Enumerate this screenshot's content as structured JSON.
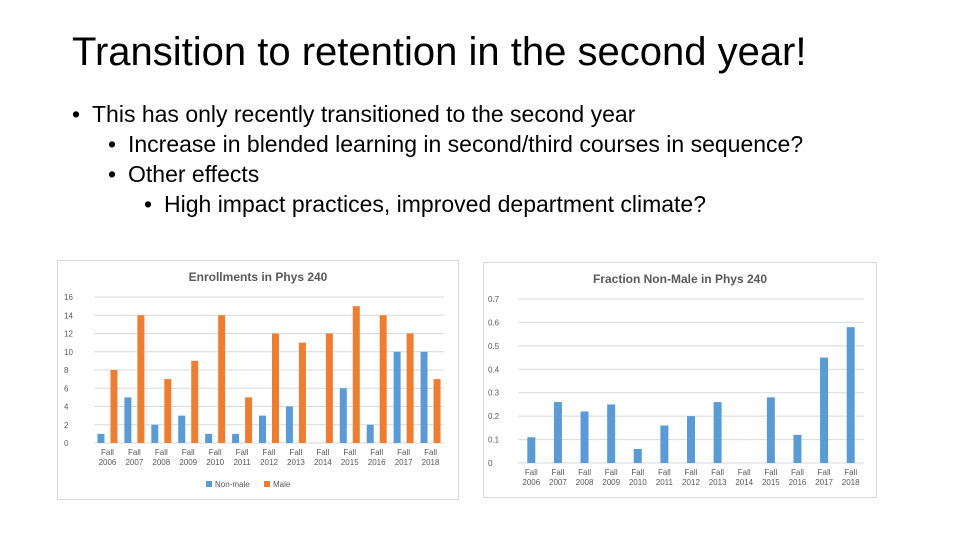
{
  "slide": {
    "title": "Transition to retention in the second year!",
    "bullets": [
      {
        "text": "This has only recently transitioned to the second year"
      },
      {
        "text": "Increase in blended learning in second/third courses in sequence?"
      },
      {
        "text": "Other effects"
      },
      {
        "text": "High impact practices, improved department climate?"
      }
    ]
  },
  "colors": {
    "non_male": "#5b9bd5",
    "male": "#ed7d31",
    "grid": "#d9d9d9",
    "text": "#595959"
  },
  "chart_data": [
    {
      "type": "bar",
      "title": "Enrollments in Phys 240",
      "categories": [
        "Fall 2006",
        "Fall 2007",
        "Fall 2008",
        "Fall 2009",
        "Fall 2010",
        "Fall 2011",
        "Fall 2012",
        "Fall 2013",
        "Fall 2014",
        "Fall 2015",
        "Fall 2016",
        "Fall 2017",
        "Fall 2018"
      ],
      "series": [
        {
          "name": "Non-male",
          "values": [
            1,
            5,
            2,
            3,
            1,
            1,
            3,
            4,
            0,
            6,
            2,
            10,
            10
          ]
        },
        {
          "name": "Male",
          "values": [
            8,
            14,
            7,
            9,
            14,
            5,
            12,
            11,
            12,
            15,
            14,
            12,
            7
          ]
        }
      ],
      "ylim": [
        0,
        16
      ],
      "yticks": [
        "0",
        "2",
        "4",
        "6",
        "8",
        "10",
        "12",
        "14",
        "16"
      ],
      "legend": "bottom",
      "grid": true
    },
    {
      "type": "bar",
      "title": "Fraction Non-Male in Phys 240",
      "categories": [
        "Fall 2006",
        "Fall 2007",
        "Fall 2008",
        "Fall 2009",
        "Fall 2010",
        "Fall 2011",
        "Fall 2012",
        "Fall 2013",
        "Fall 2014",
        "Fall 2015",
        "Fall 2016",
        "Fall 2017",
        "Fall 2018"
      ],
      "series": [
        {
          "name": "Fraction Non-Male",
          "values": [
            0.11,
            0.26,
            0.22,
            0.25,
            0.06,
            0.16,
            0.2,
            0.26,
            0,
            0.28,
            0.12,
            0.45,
            0.58
          ]
        }
      ],
      "ylim": [
        0,
        0.7
      ],
      "yticks": [
        "0",
        "0.1",
        "0.2",
        "0.3",
        "0.4",
        "0.5",
        "0.6",
        "0.7"
      ],
      "legend": "none",
      "grid": true
    }
  ]
}
